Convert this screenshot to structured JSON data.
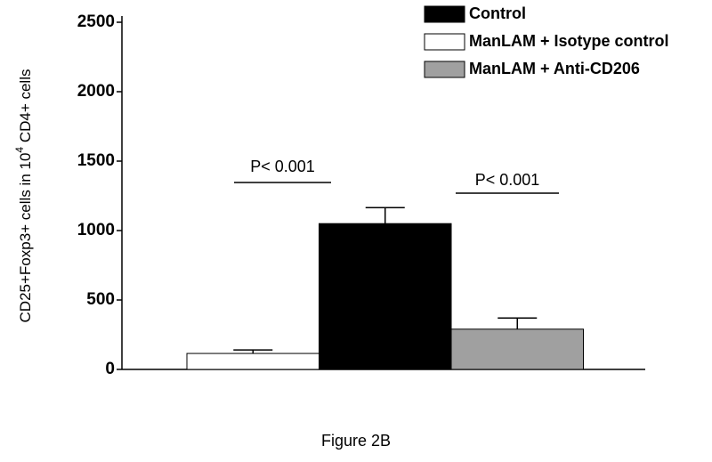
{
  "chart_data": {
    "type": "bar",
    "y_label": [
      "CD25+Foxp3+ cells in 10",
      "4",
      " CD4+ cells"
    ],
    "caption": "Figure 2B",
    "categories": [
      null
    ],
    "series": [
      {
        "name": "ManLAM + Isotype control",
        "color": "#ffffff",
        "values": [
          115
        ],
        "errors": [
          25
        ]
      },
      {
        "name": "Control",
        "color": "#000000",
        "values": [
          1050
        ],
        "errors": [
          115
        ]
      },
      {
        "name": "ManLAM + Anti-CD206",
        "color": "#a0a0a0",
        "values": [
          290
        ],
        "errors": [
          80
        ]
      }
    ],
    "legend_order": [
      1,
      0,
      2
    ],
    "legend": "top-right",
    "annotations": [
      "P< 0.001",
      "P< 0.001"
    ],
    "ylim": [
      0,
      2500
    ],
    "yticks": [
      0,
      500,
      1000,
      1500,
      2000,
      2500
    ],
    "grid": false
  }
}
